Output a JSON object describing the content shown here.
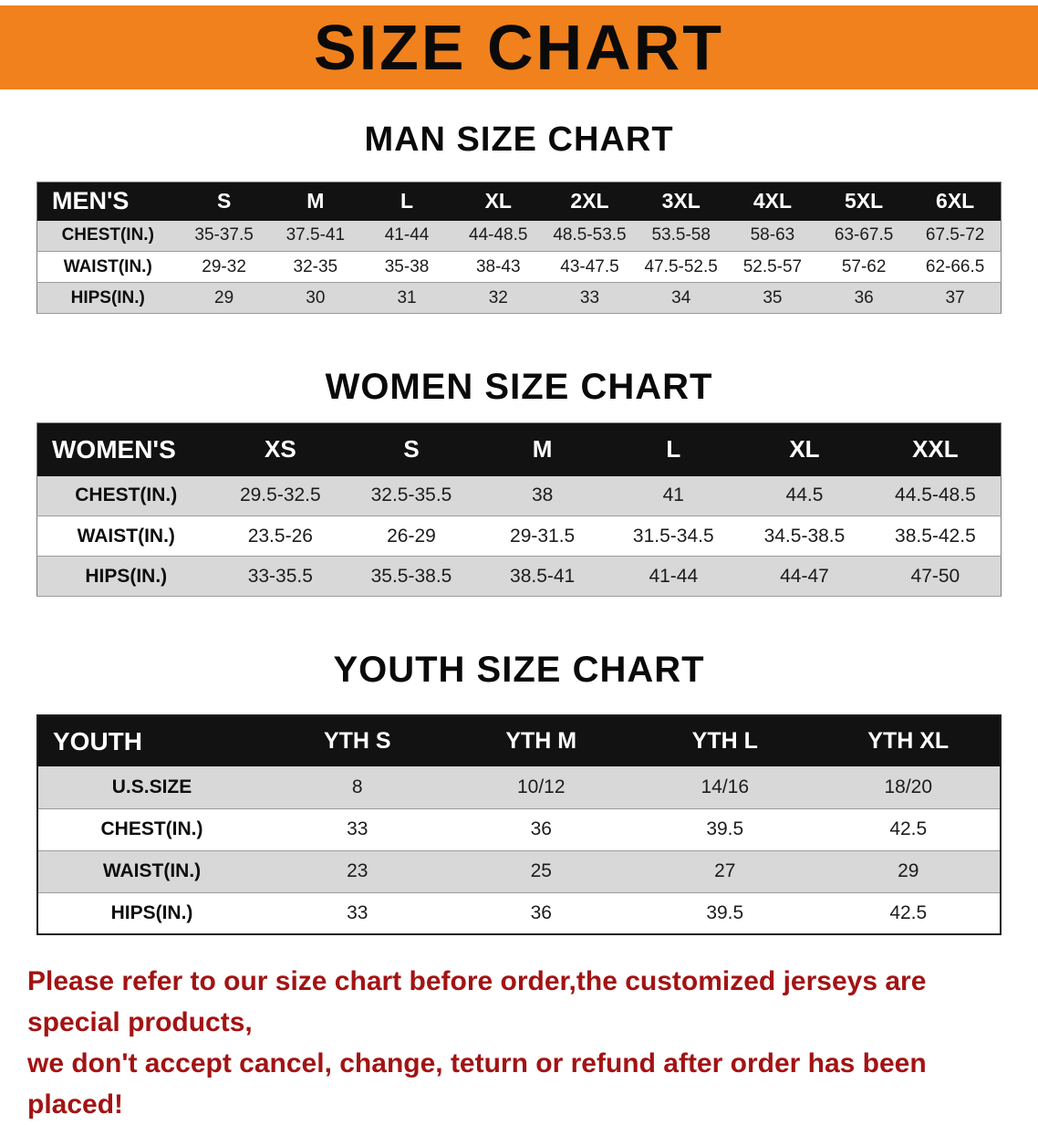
{
  "banner": {
    "title": "SIZE CHART",
    "bg_color": "#f0811c",
    "text_color": "#0a0a0a"
  },
  "men": {
    "section_title": "MAN SIZE CHART",
    "header": [
      "MEN'S",
      "S",
      "M",
      "L",
      "XL",
      "2XL",
      "3XL",
      "4XL",
      "5XL",
      "6XL"
    ],
    "rows": [
      {
        "label": "CHEST(IN.)",
        "values": [
          "35-37.5",
          "37.5-41",
          "41-44",
          "44-48.5",
          "48.5-53.5",
          "53.5-58",
          "58-63",
          "63-67.5",
          "67.5-72"
        ]
      },
      {
        "label": "WAIST(IN.)",
        "values": [
          "29-32",
          "32-35",
          "35-38",
          "38-43",
          "43-47.5",
          "47.5-52.5",
          "52.5-57",
          "57-62",
          "62-66.5"
        ]
      },
      {
        "label": "HIPS(IN.)",
        "values": [
          "29",
          "30",
          "31",
          "32",
          "33",
          "34",
          "35",
          "36",
          "37"
        ]
      }
    ]
  },
  "women": {
    "section_title": "WOMEN SIZE CHART",
    "header": [
      "WOMEN'S",
      "XS",
      "S",
      "M",
      "L",
      "XL",
      "XXL"
    ],
    "rows": [
      {
        "label": "CHEST(IN.)",
        "values": [
          "29.5-32.5",
          "32.5-35.5",
          "38",
          "41",
          "44.5",
          "44.5-48.5"
        ]
      },
      {
        "label": "WAIST(IN.)",
        "values": [
          "23.5-26",
          "26-29",
          "29-31.5",
          "31.5-34.5",
          "34.5-38.5",
          "38.5-42.5"
        ]
      },
      {
        "label": "HIPS(IN.)",
        "values": [
          "33-35.5",
          "35.5-38.5",
          "38.5-41",
          "41-44",
          "44-47",
          "47-50"
        ]
      }
    ]
  },
  "youth": {
    "section_title": "YOUTH SIZE CHART",
    "header": [
      "YOUTH",
      "YTH S",
      "YTH M",
      "YTH L",
      "YTH XL"
    ],
    "rows": [
      {
        "label": "U.S.SIZE",
        "values": [
          "8",
          "10/12",
          "14/16",
          "18/20"
        ]
      },
      {
        "label": "CHEST(IN.)",
        "values": [
          "33",
          "36",
          "39.5",
          "42.5"
        ]
      },
      {
        "label": "WAIST(IN.)",
        "values": [
          "23",
          "25",
          "27",
          "29"
        ]
      },
      {
        "label": "HIPS(IN.)",
        "values": [
          "33",
          "36",
          "39.5",
          "42.5"
        ]
      }
    ]
  },
  "disclaimer": {
    "line1": "Please refer to our size chart before order,the customized jerseys are special products,",
    "line2": "we don't accept cancel, change, teturn or refund after order has been placed!",
    "color": "#a31313"
  }
}
